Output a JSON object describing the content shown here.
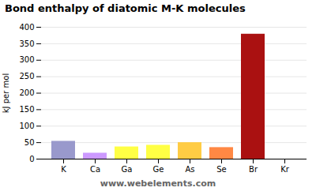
{
  "chart_data": {
    "type": "bar",
    "title": "Bond enthalpy of diatomic M-K molecules",
    "ylabel": "kJ per mol",
    "categories": [
      "K",
      "Ca",
      "Ga",
      "Ge",
      "As",
      "Se",
      "Br",
      "Kr"
    ],
    "values": [
      54,
      18,
      37,
      42,
      50,
      35,
      379,
      0
    ],
    "colors": [
      "#9999cc",
      "#cc99ff",
      "#ffff44",
      "#ffff44",
      "#ffcc44",
      "#ff8844",
      "#aa1111",
      "#ffaa00"
    ],
    "ylim": [
      0,
      400
    ],
    "yticks": [
      0,
      50,
      100,
      150,
      200,
      250,
      300,
      350,
      400
    ],
    "grid": true,
    "annotations": [
      "www.webelements.com"
    ]
  }
}
